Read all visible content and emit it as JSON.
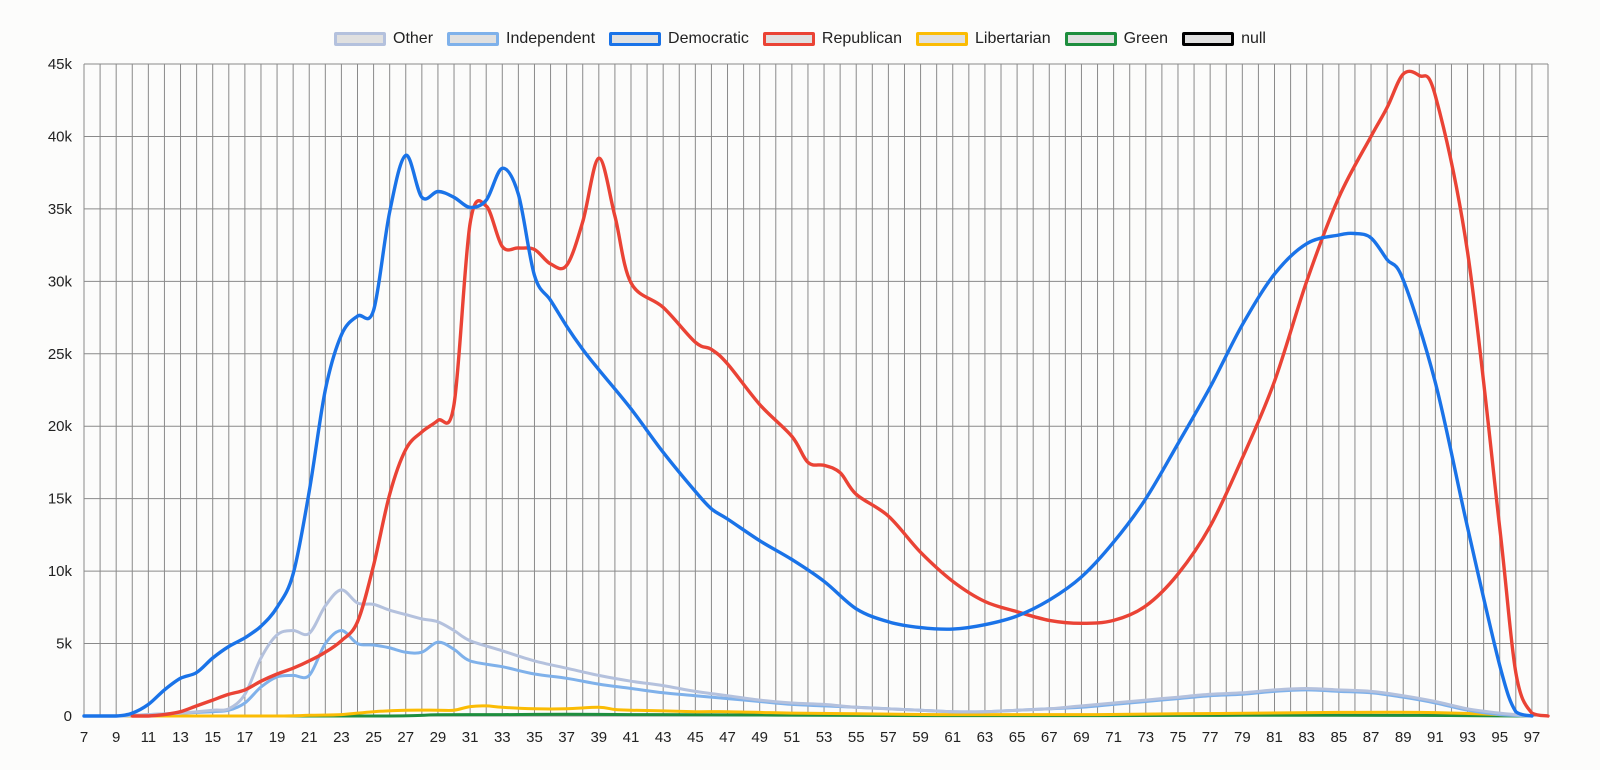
{
  "chart_data": {
    "type": "line",
    "title": "",
    "xlabel": "",
    "ylabel": "",
    "ylim": [
      0,
      45000
    ],
    "xlim": [
      7,
      98
    ],
    "y_ticks": [
      0,
      5000,
      10000,
      15000,
      20000,
      25000,
      30000,
      35000,
      40000,
      45000
    ],
    "y_tick_labels": [
      "0",
      "5k",
      "10k",
      "15k",
      "20k",
      "25k",
      "30k",
      "35k",
      "40k",
      "45k"
    ],
    "x_tick_labels": [
      "7",
      "9",
      "11",
      "13",
      "15",
      "17",
      "19",
      "21",
      "23",
      "25",
      "27",
      "29",
      "31",
      "33",
      "35",
      "37",
      "39",
      "41",
      "43",
      "45",
      "47",
      "49",
      "51",
      "53",
      "55",
      "57",
      "59",
      "61",
      "63",
      "65",
      "67",
      "69",
      "71",
      "73",
      "75",
      "77",
      "79",
      "81",
      "83",
      "85",
      "87",
      "89",
      "91",
      "93",
      "95",
      "97"
    ],
    "grid": true,
    "legend_position": "top",
    "series": [
      {
        "name": "Other",
        "color": "#b4c1dd",
        "x": [
          7,
          9,
          11,
          13,
          15,
          16,
          17,
          18,
          19,
          20,
          21,
          22,
          23,
          24,
          25,
          26,
          27,
          28,
          29,
          30,
          31,
          33,
          35,
          37,
          39,
          41,
          43,
          45,
          47,
          49,
          51,
          53,
          55,
          57,
          59,
          61,
          63,
          65,
          67,
          69,
          71,
          73,
          75,
          77,
          79,
          81,
          83,
          85,
          87,
          89,
          91,
          93,
          95,
          97
        ],
        "y": [
          0,
          0,
          100,
          200,
          400,
          500,
          1500,
          4000,
          5600,
          5900,
          5700,
          7600,
          8700,
          7800,
          7700,
          7300,
          7000,
          6700,
          6500,
          5900,
          5200,
          4500,
          3800,
          3300,
          2800,
          2400,
          2100,
          1700,
          1400,
          1100,
          900,
          800,
          600,
          500,
          400,
          300,
          300,
          400,
          500,
          700,
          900,
          1100,
          1300,
          1500,
          1600,
          1800,
          1900,
          1800,
          1700,
          1400,
          1000,
          500,
          200,
          0
        ]
      },
      {
        "name": "Independent",
        "color": "#7fb1ea",
        "x": [
          7,
          9,
          11,
          13,
          15,
          16,
          17,
          18,
          19,
          20,
          21,
          22,
          23,
          24,
          25,
          26,
          27,
          28,
          29,
          30,
          31,
          33,
          35,
          37,
          39,
          41,
          43,
          45,
          47,
          49,
          51,
          53,
          55,
          57,
          59,
          61,
          63,
          65,
          67,
          69,
          71,
          73,
          75,
          77,
          79,
          81,
          83,
          85,
          87,
          89,
          91,
          93,
          95,
          97
        ],
        "y": [
          0,
          0,
          100,
          200,
          300,
          400,
          900,
          2000,
          2700,
          2800,
          2800,
          5000,
          5900,
          5000,
          4900,
          4700,
          4400,
          4400,
          5100,
          4600,
          3800,
          3400,
          2900,
          2600,
          2200,
          1900,
          1600,
          1400,
          1200,
          1000,
          800,
          700,
          600,
          500,
          400,
          300,
          300,
          400,
          500,
          600,
          800,
          1000,
          1200,
          1400,
          1500,
          1700,
          1800,
          1700,
          1600,
          1300,
          900,
          400,
          100,
          0
        ]
      },
      {
        "name": "Democratic",
        "color": "#1a73e8",
        "x": [
          7,
          9,
          10,
          11,
          12,
          13,
          14,
          15,
          16,
          17,
          18,
          19,
          20,
          21,
          22,
          23,
          24,
          25,
          26,
          27,
          28,
          29,
          30,
          31,
          32,
          33,
          34,
          35,
          36,
          37,
          38,
          39,
          41,
          43,
          45,
          46,
          47,
          49,
          51,
          53,
          55,
          57,
          59,
          61,
          63,
          65,
          67,
          69,
          71,
          73,
          75,
          77,
          79,
          81,
          83,
          85,
          86,
          87,
          88,
          89,
          91,
          93,
          95,
          96,
          97
        ],
        "y": [
          0,
          0,
          200,
          800,
          1800,
          2600,
          3000,
          4000,
          4800,
          5400,
          6200,
          7500,
          9800,
          15500,
          22500,
          26300,
          27600,
          28000,
          34800,
          38700,
          35800,
          36200,
          35800,
          35100,
          35600,
          37800,
          36000,
          30400,
          28700,
          26900,
          25300,
          23900,
          21200,
          18200,
          15500,
          14300,
          13600,
          12100,
          10800,
          9300,
          7400,
          6500,
          6100,
          6000,
          6300,
          6900,
          8000,
          9600,
          12000,
          15000,
          18800,
          22700,
          27000,
          30500,
          32600,
          33200,
          33300,
          33000,
          31500,
          30100,
          23000,
          13000,
          3500,
          300,
          0
        ]
      },
      {
        "name": "Republican",
        "color": "#ea4335",
        "x": [
          10,
          11,
          12,
          13,
          14,
          15,
          16,
          17,
          18,
          19,
          20,
          21,
          22,
          23,
          24,
          25,
          26,
          27,
          28,
          29,
          30,
          31,
          32,
          33,
          34,
          35,
          36,
          37,
          38,
          39,
          40,
          41,
          43,
          45,
          46,
          47,
          49,
          51,
          52,
          53,
          54,
          55,
          57,
          59,
          61,
          63,
          65,
          67,
          69,
          71,
          73,
          75,
          77,
          79,
          81,
          83,
          85,
          87,
          88,
          89,
          90,
          91,
          93,
          95,
          96,
          97,
          98
        ],
        "y": [
          0,
          0,
          100,
          300,
          700,
          1100,
          1500,
          1800,
          2400,
          2900,
          3300,
          3800,
          4400,
          5200,
          6500,
          10400,
          15300,
          18400,
          19600,
          20400,
          21500,
          34000,
          35200,
          32400,
          32300,
          32200,
          31200,
          31100,
          34100,
          38500,
          34500,
          29900,
          28200,
          25800,
          25300,
          24300,
          21500,
          19300,
          17500,
          17300,
          16800,
          15300,
          13800,
          11300,
          9300,
          7900,
          7200,
          6600,
          6400,
          6600,
          7600,
          9800,
          13100,
          17800,
          23100,
          30000,
          35800,
          40000,
          42000,
          44300,
          44200,
          42800,
          32000,
          13000,
          3000,
          200,
          0
        ]
      },
      {
        "name": "Libertarian",
        "color": "#fbbc04",
        "x": [
          7,
          13,
          19,
          21,
          23,
          25,
          27,
          29,
          30,
          31,
          32,
          33,
          35,
          37,
          39,
          40,
          41,
          43,
          45,
          47,
          49,
          51,
          55,
          60,
          65,
          70,
          75,
          80,
          85,
          90,
          95,
          97
        ],
        "y": [
          0,
          0,
          0,
          50,
          100,
          300,
          400,
          400,
          400,
          650,
          700,
          600,
          500,
          500,
          600,
          450,
          400,
          350,
          300,
          300,
          250,
          200,
          150,
          100,
          100,
          100,
          150,
          200,
          250,
          250,
          100,
          0
        ]
      },
      {
        "name": "Green",
        "color": "#1e8e3e",
        "x": [
          7,
          25,
          29,
          33,
          37,
          41,
          45,
          50,
          55,
          60,
          65,
          70,
          75,
          80,
          85,
          90,
          95,
          97
        ],
        "y": [
          0,
          0,
          80,
          100,
          120,
          100,
          80,
          60,
          40,
          30,
          30,
          30,
          40,
          50,
          50,
          40,
          10,
          0
        ]
      },
      {
        "name": "null",
        "color": "#000000",
        "x": [],
        "y": []
      }
    ]
  }
}
